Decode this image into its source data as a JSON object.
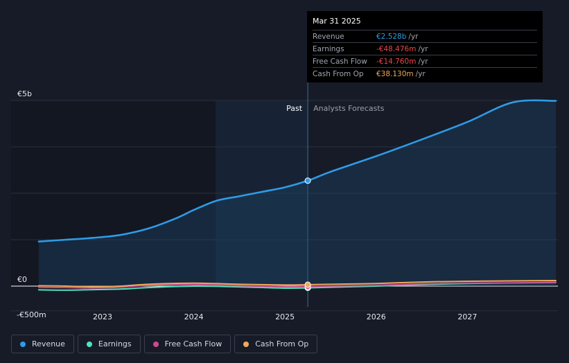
{
  "chart_data": {
    "type": "line",
    "x_axis": {
      "tick_labels": [
        "2023",
        "2024",
        "2025",
        "2026",
        "2027"
      ]
    },
    "y_axis": {
      "tick_labels": [
        "€5b",
        "€0",
        "-€500m"
      ],
      "ylim": [
        -500,
        5000
      ]
    },
    "regions": {
      "past_label": "Past",
      "forecast_label": "Analysts Forecasts"
    },
    "series": [
      {
        "name": "Revenue",
        "color": "#2f9be6",
        "points": [
          [
            2022.3,
            1200
          ],
          [
            2022.6,
            1250
          ],
          [
            2022.9,
            1300
          ],
          [
            2023.2,
            1380
          ],
          [
            2023.5,
            1550
          ],
          [
            2023.8,
            1820
          ],
          [
            2024.0,
            2050
          ],
          [
            2024.25,
            2300
          ],
          [
            2024.5,
            2420
          ],
          [
            2024.75,
            2540
          ],
          [
            2025.0,
            2660
          ],
          [
            2025.25,
            2528
          ],
          [
            2025.25,
            2840
          ],
          [
            2025.5,
            3080
          ],
          [
            2026.0,
            3500
          ],
          [
            2026.5,
            3950
          ],
          [
            2027.0,
            4420
          ],
          [
            2027.5,
            4950
          ],
          [
            2027.97,
            4990
          ]
        ]
      },
      {
        "name": "Earnings",
        "color": "#50e3c2",
        "points": [
          [
            2022.3,
            -100
          ],
          [
            2022.6,
            -110
          ],
          [
            2022.9,
            -95
          ],
          [
            2023.2,
            -80
          ],
          [
            2023.5,
            -40
          ],
          [
            2024.0,
            0
          ],
          [
            2024.5,
            -20
          ],
          [
            2025.0,
            -55
          ],
          [
            2025.25,
            -48.476
          ],
          [
            2025.5,
            -30
          ],
          [
            2026.0,
            0
          ],
          [
            2026.5,
            40
          ],
          [
            2027.0,
            70
          ],
          [
            2027.97,
            100
          ]
        ]
      },
      {
        "name": "Free Cash Flow",
        "color": "#cc4b8c",
        "points": [
          [
            2022.3,
            -30
          ],
          [
            2022.6,
            -40
          ],
          [
            2022.9,
            -50
          ],
          [
            2023.2,
            -30
          ],
          [
            2023.5,
            20
          ],
          [
            2024.0,
            40
          ],
          [
            2024.5,
            10
          ],
          [
            2025.0,
            -20
          ],
          [
            2025.25,
            -14.76
          ],
          [
            2025.5,
            0
          ],
          [
            2026.0,
            20
          ],
          [
            2026.5,
            60
          ],
          [
            2027.0,
            80
          ],
          [
            2027.97,
            90
          ]
        ]
      },
      {
        "name": "Cash From Op",
        "color": "#f0a85a",
        "points": [
          [
            2022.3,
            10
          ],
          [
            2022.6,
            0
          ],
          [
            2022.9,
            -20
          ],
          [
            2023.2,
            0
          ],
          [
            2023.5,
            50
          ],
          [
            2024.0,
            80
          ],
          [
            2024.5,
            50
          ],
          [
            2025.0,
            30
          ],
          [
            2025.25,
            38.13
          ],
          [
            2025.5,
            50
          ],
          [
            2026.0,
            70
          ],
          [
            2026.5,
            110
          ],
          [
            2027.0,
            130
          ],
          [
            2027.97,
            150
          ]
        ]
      }
    ],
    "legend": {
      "placement": "bottom-left"
    },
    "grid": true
  },
  "tooltip": {
    "date": "Mar 31 2025",
    "rows": [
      {
        "label": "Revenue",
        "value": "€2.528b",
        "unit": "/yr",
        "color": "#2f9be6"
      },
      {
        "label": "Earnings",
        "value": "-€48.476m",
        "unit": "/yr",
        "color": "#e8464a"
      },
      {
        "label": "Free Cash Flow",
        "value": "-€14.760m",
        "unit": "/yr",
        "color": "#e8464a"
      },
      {
        "label": "Cash From Op",
        "value": "€38.130m",
        "unit": "/yr",
        "color": "#f0a85a"
      }
    ]
  },
  "legend": [
    {
      "label": "Revenue",
      "color": "#2f9be6"
    },
    {
      "label": "Earnings",
      "color": "#50e3c2"
    },
    {
      "label": "Free Cash Flow",
      "color": "#cc4b8c"
    },
    {
      "label": "Cash From Op",
      "color": "#f0a85a"
    }
  ]
}
